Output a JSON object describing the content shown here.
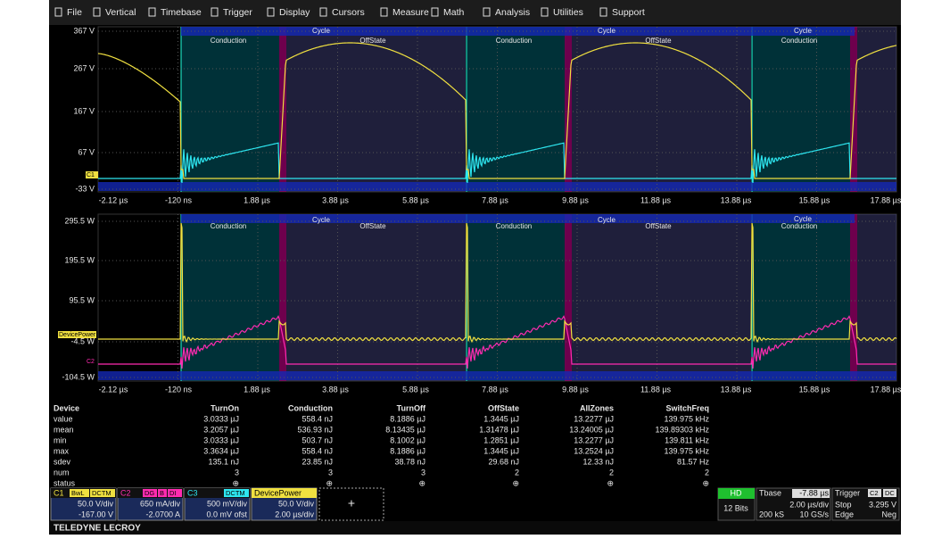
{
  "menu": [
    "File",
    "Vertical",
    "Timebase",
    "Trigger",
    "Display",
    "Cursors",
    "Measure",
    "Math",
    "Analysis",
    "Utilities",
    "Support"
  ],
  "upper_plot": {
    "y_labels": [
      "367 V",
      "267 V",
      "167 V",
      "67 V",
      "-33 V"
    ],
    "x_labels": [
      "-2.12 µs",
      "-120 ns",
      "1.88 µs",
      "3.88 µs",
      "5.88 µs",
      "7.88 µs",
      "9.88 µs",
      "11.88 µs",
      "13.88 µs",
      "15.88 µs",
      "17.88 µs"
    ],
    "zone_labels": [
      "Cycle",
      "Conduction",
      "OffState",
      "Cycle",
      "Conduction",
      "OffState",
      "Cycle",
      "Conduction"
    ],
    "trace_tag": "C1"
  },
  "lower_plot": {
    "y_labels": [
      "295.5 W",
      "195.5 W",
      "95.5 W",
      "-4.5 W",
      "-104.5 W"
    ],
    "x_labels": [
      "-2.12 µs",
      "-120 ns",
      "1.88 µs",
      "3.88 µs",
      "5.88 µs",
      "7.88 µs",
      "9.88 µs",
      "11.88 µs",
      "13.88 µs",
      "15.88 µs",
      "17.88 µs"
    ],
    "zone_labels": [
      "Cycle",
      "Conduction",
      "OffState",
      "Cycle",
      "Conduction",
      "OffState",
      "Cycle",
      "Conduction"
    ],
    "trace_tags": [
      "DevicePower",
      "C2"
    ]
  },
  "table": {
    "header": [
      "Device",
      "TurnOn",
      "Conduction",
      "TurnOff",
      "OffState",
      "AllZones",
      "SwitchFreq"
    ],
    "rows": [
      [
        "value",
        "3.0333 µJ",
        "558.4 nJ",
        "8.1886 µJ",
        "1.3445 µJ",
        "13.2277 µJ",
        "139.975 kHz"
      ],
      [
        "mean",
        "3.2057 µJ",
        "536.93 nJ",
        "8.13435 µJ",
        "1.31478 µJ",
        "13.24005 µJ",
        "139.89303 kHz"
      ],
      [
        "min",
        "3.0333 µJ",
        "503.7 nJ",
        "8.1002 µJ",
        "1.2851 µJ",
        "13.2277 µJ",
        "139.811 kHz"
      ],
      [
        "max",
        "3.3634 µJ",
        "558.4 nJ",
        "8.1886 µJ",
        "1.3445 µJ",
        "13.2524 µJ",
        "139.975 kHz"
      ],
      [
        "sdev",
        "135.1 nJ",
        "23.85 nJ",
        "38.78 nJ",
        "29.68 nJ",
        "12.33 nJ",
        "81.57 Hz"
      ],
      [
        "num",
        "3",
        "3",
        "3",
        "2",
        "2",
        "2"
      ],
      [
        "status",
        "⊕",
        "⊕",
        "⊕",
        "⊕",
        "⊕",
        "⊕"
      ]
    ]
  },
  "channels": [
    {
      "name": "C1",
      "tags": [
        "BwL",
        "DCTM"
      ],
      "line1": "50.0 V/div",
      "line2": "-167.00 V"
    },
    {
      "name": "C2",
      "tags": [
        "DG",
        "B",
        "DI"
      ],
      "line1": "650 mA/div",
      "line2": "-2.0700 A"
    },
    {
      "name": "C3",
      "tags": [
        "DCTM"
      ],
      "line1": "500 mV/div",
      "line2": "0.0 mV ofst"
    },
    {
      "name": "DevicePower",
      "tags": [],
      "line1": "50.0 V/div",
      "line2": "2.00 µs/div"
    }
  ],
  "add_button": "+",
  "hd": {
    "label": "HD",
    "bits": "12 Bits"
  },
  "timebase": {
    "title": "Tbase",
    "delay": "-7.88 µs",
    "scale": "2.00 µs/div",
    "samples": "200 kS",
    "rate": "10 GS/s"
  },
  "trigger": {
    "title": "Trigger",
    "tags": [
      "C2",
      "DC"
    ],
    "mode": "Stop",
    "level": "3.295 V",
    "type": "Edge",
    "slope": "Neg"
  },
  "brand": "TELEDYNE LECROY"
}
